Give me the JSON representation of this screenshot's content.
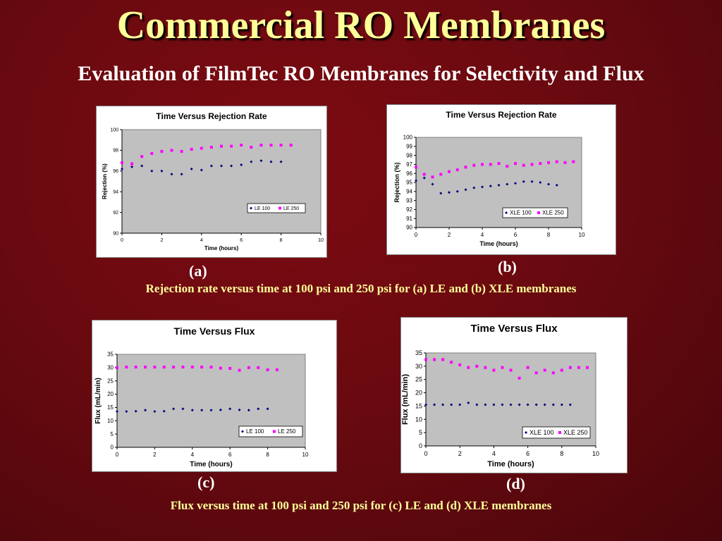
{
  "slide": {
    "title": "Commercial RO Membranes",
    "subtitle": "Evaluation of FilmTec RO Membranes for Selectivity and Flux",
    "caption_top": "Rejection rate versus time at 100 psi and 250 psi for (a) LE and (b) XLE membranes",
    "caption_bottom": "Flux versus time at 100 psi and 250 psi for (c) LE and (d) XLE membranes",
    "label_a": "(a)",
    "label_b": "(b)",
    "label_c": "(c)",
    "label_d": "(d)"
  },
  "colors": {
    "series1": "#000080",
    "series2": "#ff00ff",
    "plot_bg": "#c0c0c0",
    "title_color": "#ffff99"
  },
  "chart_data": [
    {
      "id": "a",
      "type": "scatter",
      "title": "Time Versus Rejection Rate",
      "xlabel": "Time (hours)",
      "ylabel": "Rejection (%)",
      "xlim": [
        0,
        10
      ],
      "ylim": [
        90,
        100
      ],
      "xticks": [
        0,
        2,
        4,
        6,
        8,
        10
      ],
      "yticks": [
        90,
        92,
        94,
        96,
        98,
        100
      ],
      "grid": false,
      "legend_position": "lower-right",
      "series": [
        {
          "name": "LE 100",
          "marker": "diamond",
          "x": [
            0,
            0.5,
            1,
            1.5,
            2,
            2.5,
            3,
            3.5,
            4,
            4.5,
            5,
            5.5,
            6,
            6.5,
            7,
            7.5,
            8
          ],
          "y": [
            96.2,
            96.4,
            96.5,
            96.0,
            96.0,
            95.7,
            95.7,
            96.2,
            96.1,
            96.5,
            96.5,
            96.5,
            96.6,
            96.9,
            97.0,
            96.9,
            96.9
          ]
        },
        {
          "name": "LE 250",
          "marker": "square",
          "x": [
            0,
            0.5,
            1,
            1.5,
            2,
            2.5,
            3,
            3.5,
            4,
            4.5,
            5,
            5.5,
            6,
            6.5,
            7,
            7.5,
            8,
            8.5
          ],
          "y": [
            96.8,
            96.7,
            97.4,
            97.7,
            97.9,
            98.0,
            97.9,
            98.1,
            98.2,
            98.3,
            98.4,
            98.4,
            98.5,
            98.3,
            98.5,
            98.5,
            98.5,
            98.5
          ]
        }
      ]
    },
    {
      "id": "b",
      "type": "scatter",
      "title": "Time Versus Rejection Rate",
      "xlabel": "Time (hours)",
      "ylabel": "Rejection (%)",
      "xlim": [
        0,
        10
      ],
      "ylim": [
        90,
        100
      ],
      "xticks": [
        0,
        2,
        4,
        6,
        8,
        10
      ],
      "yticks": [
        90,
        91,
        92,
        93,
        94,
        95,
        96,
        97,
        98,
        99,
        100
      ],
      "grid": false,
      "legend_position": "lower-right",
      "series": [
        {
          "name": "XLE 100",
          "marker": "diamond",
          "x": [
            0,
            0.5,
            1,
            1.5,
            2,
            2.5,
            3,
            3.5,
            4,
            4.5,
            5,
            5.5,
            6,
            6.5,
            7,
            7.5,
            8,
            8.5
          ],
          "y": [
            95.2,
            95.5,
            94.8,
            93.8,
            93.9,
            94.0,
            94.2,
            94.4,
            94.5,
            94.6,
            94.7,
            94.8,
            94.9,
            95.1,
            95.1,
            95.0,
            94.8,
            94.7
          ]
        },
        {
          "name": "XLE 250",
          "marker": "square",
          "x": [
            0,
            0.5,
            1,
            1.5,
            2,
            2.5,
            3,
            3.5,
            4,
            4.5,
            5,
            5.5,
            6,
            6.5,
            7,
            7.5,
            8,
            8.5,
            9,
            9.5
          ],
          "y": [
            96.7,
            95.9,
            95.6,
            95.9,
            96.2,
            96.4,
            96.7,
            96.9,
            97.0,
            97.0,
            97.1,
            96.8,
            97.1,
            96.9,
            97.0,
            97.1,
            97.2,
            97.3,
            97.2,
            97.3
          ]
        }
      ]
    },
    {
      "id": "c",
      "type": "scatter",
      "title": "Time Versus Flux",
      "xlabel": "Time (hours)",
      "ylabel": "Flux (mL/min)",
      "xlim": [
        0,
        10
      ],
      "ylim": [
        0,
        35
      ],
      "xticks": [
        0,
        2,
        4,
        6,
        8,
        10
      ],
      "yticks": [
        0,
        5,
        10,
        15,
        20,
        25,
        30,
        35
      ],
      "grid": false,
      "legend_position": "lower-right",
      "series": [
        {
          "name": "LE 100",
          "marker": "diamond",
          "x": [
            0,
            0.5,
            1,
            1.5,
            2,
            2.5,
            3,
            3.5,
            4,
            4.5,
            5,
            5.5,
            6,
            6.5,
            7,
            7.5,
            8
          ],
          "y": [
            13.5,
            13.5,
            13.6,
            14.0,
            13.5,
            13.6,
            14.5,
            14.5,
            14.0,
            14.0,
            14.0,
            14.1,
            14.5,
            14.1,
            14.0,
            14.5,
            14.5
          ]
        },
        {
          "name": "LE 250",
          "marker": "square",
          "x": [
            0,
            0.5,
            1,
            1.5,
            2,
            2.5,
            3,
            3.5,
            4,
            4.5,
            5,
            5.5,
            6,
            6.5,
            7,
            7.5,
            8,
            8.5
          ],
          "y": [
            30.0,
            30.2,
            30.2,
            30.2,
            30.2,
            30.2,
            30.2,
            30.2,
            30.2,
            30.2,
            30.2,
            29.8,
            29.7,
            29.0,
            30.0,
            30.0,
            29.2,
            29.2
          ]
        }
      ]
    },
    {
      "id": "d",
      "type": "scatter",
      "title": "Time Versus Flux",
      "xlabel": "Time (hours)",
      "ylabel": "Flux (mL/min)",
      "xlim": [
        0,
        10
      ],
      "ylim": [
        0,
        35
      ],
      "xticks": [
        0,
        2,
        4,
        6,
        8,
        10
      ],
      "yticks": [
        0,
        5,
        10,
        15,
        20,
        25,
        30,
        35
      ],
      "grid": false,
      "legend_position": "lower-right",
      "series": [
        {
          "name": "XLE 100",
          "marker": "diamond",
          "x": [
            0,
            0.5,
            1,
            1.5,
            2,
            2.5,
            3,
            3.5,
            4,
            4.5,
            5,
            5.5,
            6,
            6.5,
            7,
            7.5,
            8,
            8.5
          ],
          "y": [
            15.5,
            15.5,
            15.5,
            15.5,
            15.5,
            16.2,
            15.5,
            15.5,
            15.5,
            15.5,
            15.5,
            15.5,
            15.5,
            15.5,
            15.5,
            15.5,
            15.5,
            15.5
          ]
        },
        {
          "name": "XLE 250",
          "marker": "square",
          "x": [
            0,
            0.5,
            1,
            1.5,
            2,
            2.5,
            3,
            3.5,
            4,
            4.5,
            5,
            5.5,
            6,
            6.5,
            7,
            7.5,
            8,
            8.5,
            9,
            9.5
          ],
          "y": [
            32.5,
            32.5,
            32.5,
            31.5,
            30.5,
            29.5,
            30.0,
            29.5,
            28.5,
            29.5,
            28.5,
            25.5,
            29.5,
            27.5,
            28.5,
            27.5,
            28.5,
            29.5,
            29.5,
            29.5
          ]
        }
      ]
    }
  ]
}
